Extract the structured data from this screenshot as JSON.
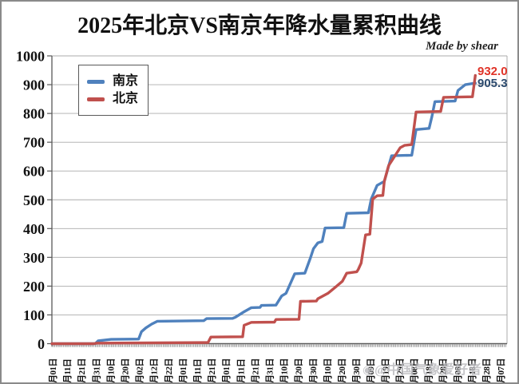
{
  "page": {
    "title": "2025年北京VS南京年降水量累积曲线",
    "credit": "Made by shear",
    "watermark": "@中国气象爱好者"
  },
  "annotations": {
    "beijing_end_label": "932.0",
    "nanjing_end_label": "905.3",
    "beijing_end_color": "#e03328",
    "nanjing_end_color": "#2c4a6e"
  },
  "chart_data": {
    "type": "line",
    "title": "2025年北京VS南京年降水量累积曲线",
    "credit": "Made by shear",
    "watermark": "@中国气象爱好者",
    "ylabel": "",
    "xlabel": "",
    "ylim": [
      0,
      1000
    ],
    "y_axis": {
      "min": 0,
      "max": 1000,
      "step": 100,
      "tick_labels": [
        "1000",
        "900",
        "800",
        "700",
        "600",
        "500",
        "400",
        "300",
        "200",
        "100",
        "0"
      ]
    },
    "x_axis": {
      "unit": "day of year, labels every 10 days, minor ticks daily",
      "tick_interval_days": 10,
      "tick_labels": [
        "月01日",
        "月11日",
        "月21日",
        "月31日",
        "月10日",
        "月20日",
        "月02日",
        "月12日",
        "月22日",
        "月01日",
        "月11日",
        "月21日",
        "月01日",
        "月11日",
        "月21日",
        "月31日",
        "月10日",
        "月20日",
        "月30日",
        "月10日",
        "月20日",
        "月30日",
        "月09日",
        "月19日",
        "月29日",
        "月08日",
        "月18日",
        "月28日",
        "月08日",
        "月18日",
        "月28日",
        "月07日"
      ]
    },
    "layout": {
      "grid": true,
      "legend_position": "top-left"
    },
    "series": [
      {
        "name": "南京",
        "color": "#4F81BD",
        "end_value": 905.3,
        "end_label": "905.3",
        "points_day_value": [
          [
            1,
            0
          ],
          [
            31,
            0
          ],
          [
            33,
            10
          ],
          [
            42,
            15
          ],
          [
            61,
            16
          ],
          [
            63,
            42
          ],
          [
            66,
            55
          ],
          [
            70,
            68
          ],
          [
            74,
            78
          ],
          [
            106,
            80
          ],
          [
            108,
            87
          ],
          [
            126,
            88
          ],
          [
            128,
            92
          ],
          [
            134,
            111
          ],
          [
            139,
            125
          ],
          [
            145,
            126
          ],
          [
            146,
            133
          ],
          [
            156,
            134
          ],
          [
            157,
            142
          ],
          [
            160,
            166
          ],
          [
            163,
            175
          ],
          [
            169,
            243
          ],
          [
            176,
            245
          ],
          [
            180,
            300
          ],
          [
            182,
            330
          ],
          [
            185,
            350
          ],
          [
            188,
            355
          ],
          [
            190,
            402
          ],
          [
            203,
            403
          ],
          [
            205,
            453
          ],
          [
            220,
            455
          ],
          [
            222,
            503
          ],
          [
            226,
            550
          ],
          [
            231,
            564
          ],
          [
            236,
            653
          ],
          [
            250,
            655
          ],
          [
            253,
            744
          ],
          [
            262,
            748
          ],
          [
            264,
            790
          ],
          [
            266,
            841
          ],
          [
            280,
            843
          ],
          [
            282,
            880
          ],
          [
            287,
            900
          ],
          [
            294,
            905.3
          ]
        ]
      },
      {
        "name": "北京",
        "color": "#C0504D",
        "end_value": 932.0,
        "end_label": "932.0",
        "points_day_value": [
          [
            1,
            0
          ],
          [
            30,
            0
          ],
          [
            32,
            2
          ],
          [
            109,
            4
          ],
          [
            111,
            23
          ],
          [
            133,
            24
          ],
          [
            134,
            64
          ],
          [
            139,
            74
          ],
          [
            155,
            75
          ],
          [
            156,
            84
          ],
          [
            172,
            85
          ],
          [
            173,
            147
          ],
          [
            184,
            148
          ],
          [
            185,
            156
          ],
          [
            192,
            175
          ],
          [
            198,
            200
          ],
          [
            202,
            217
          ],
          [
            205,
            245
          ],
          [
            212,
            250
          ],
          [
            213,
            258
          ],
          [
            215,
            280
          ],
          [
            218,
            378
          ],
          [
            221,
            380
          ],
          [
            223,
            503
          ],
          [
            226,
            514
          ],
          [
            230,
            515
          ],
          [
            231,
            564
          ],
          [
            234,
            619
          ],
          [
            238,
            650
          ],
          [
            242,
            681
          ],
          [
            245,
            689
          ],
          [
            250,
            692
          ],
          [
            253,
            805
          ],
          [
            270,
            807
          ],
          [
            272,
            856
          ],
          [
            292,
            858
          ],
          [
            294,
            932.0
          ]
        ]
      }
    ]
  }
}
